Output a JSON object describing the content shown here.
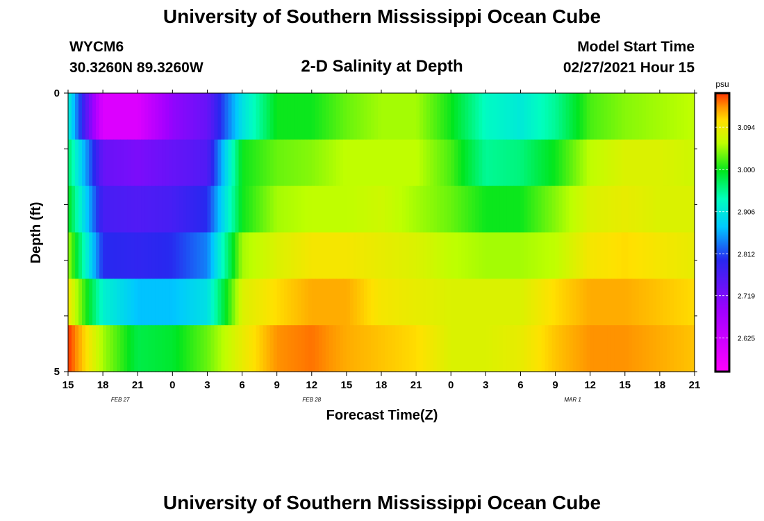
{
  "header": {
    "title": "University of Southern Mississippi Ocean Cube",
    "station_id": "WYCM6",
    "station_location": "30.3260N 89.3260W",
    "chart_title": "2-D Salinity at Depth",
    "model_start_label": "Model Start Time",
    "model_start_value": "02/27/2021 Hour 15"
  },
  "footer": {
    "title": "University of Southern Mississippi Ocean Cube"
  },
  "chart_data": {
    "type": "heatmap",
    "title": "2-D Salinity at Depth",
    "xlabel": "Forecast Time(Z)",
    "ylabel": "Depth (ft)",
    "y_ticks": [
      "0",
      "5"
    ],
    "y_range": [
      0,
      5
    ],
    "x_ticks": [
      "15",
      "18",
      "21",
      "0",
      "3",
      "6",
      "9",
      "12",
      "15",
      "18",
      "21",
      "0",
      "3",
      "6",
      "9",
      "12",
      "15",
      "18",
      "21"
    ],
    "date_labels": [
      {
        "text": "FEB 27",
        "at_tick": 1.5
      },
      {
        "text": "FEB 28",
        "at_tick": 7
      },
      {
        "text": "MAR 1",
        "at_tick": 14.5
      }
    ],
    "colorbar": {
      "unit": "psu",
      "labels": [
        "3.094",
        "3.000",
        "2.906",
        "2.812",
        "2.719",
        "2.625"
      ],
      "range": [
        2.55,
        3.17
      ]
    },
    "depth_levels": [
      0,
      1,
      2,
      3,
      4,
      5
    ],
    "hours": [
      0,
      3,
      6,
      9,
      12,
      15,
      18,
      21,
      24,
      27,
      30,
      33,
      36,
      39,
      42,
      45,
      48,
      51,
      54
    ],
    "values": [
      [
        2.92,
        2.6,
        2.6,
        2.7,
        2.74,
        2.9,
        3.0,
        3.0,
        3.03,
        3.05,
        3.05,
        3.0,
        2.93,
        2.91,
        2.95,
        3.02,
        3.04,
        3.05,
        3.06
      ],
      [
        2.97,
        2.74,
        2.72,
        2.74,
        2.76,
        3.0,
        3.03,
        3.04,
        3.06,
        3.06,
        3.06,
        3.02,
        2.95,
        2.96,
        3.0,
        3.06,
        3.08,
        3.08,
        3.07
      ],
      [
        3.0,
        2.77,
        2.76,
        2.77,
        2.8,
        3.0,
        3.05,
        3.06,
        3.06,
        3.07,
        3.05,
        3.03,
        3.0,
        3.0,
        3.04,
        3.08,
        3.09,
        3.08,
        3.08
      ],
      [
        3.05,
        2.8,
        2.79,
        2.8,
        2.84,
        3.05,
        3.08,
        3.1,
        3.1,
        3.09,
        3.08,
        3.06,
        3.05,
        3.05,
        3.06,
        3.1,
        3.11,
        3.1,
        3.09
      ],
      [
        3.1,
        2.92,
        2.87,
        2.87,
        2.9,
        3.08,
        3.11,
        3.13,
        3.13,
        3.1,
        3.09,
        3.08,
        3.08,
        3.08,
        3.11,
        3.13,
        3.13,
        3.12,
        3.11
      ],
      [
        3.17,
        3.05,
        2.98,
        2.99,
        3.03,
        3.09,
        3.14,
        3.15,
        3.13,
        3.12,
        3.11,
        3.08,
        3.08,
        3.09,
        3.12,
        3.14,
        3.14,
        3.13,
        3.12
      ]
    ],
    "grid": false
  }
}
